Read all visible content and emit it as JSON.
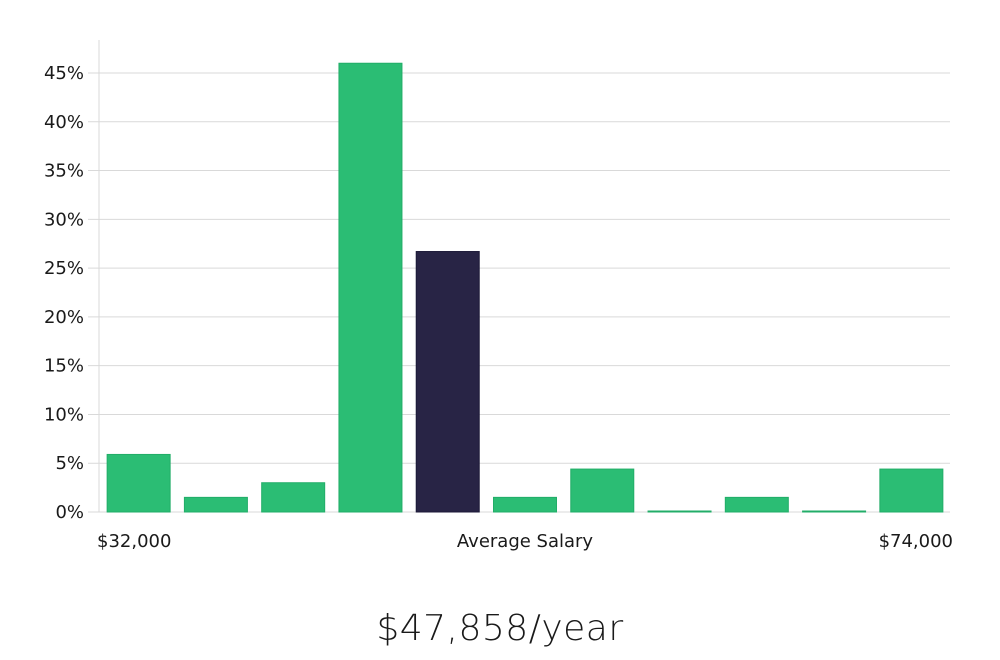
{
  "chart_data": {
    "type": "bar",
    "categories": [
      "1",
      "2",
      "3",
      "4",
      "5",
      "6",
      "7",
      "8",
      "9",
      "10",
      "11"
    ],
    "values": [
      5.9,
      1.5,
      3.0,
      46.0,
      26.7,
      1.5,
      4.4,
      0.05,
      1.5,
      0.05,
      4.4
    ],
    "highlight_index": 4,
    "colors": {
      "bar": "#2bbd74",
      "highlight": "#282445",
      "grid": "#d9d9d9",
      "text": "#1a1a1a"
    },
    "ylim": [
      0,
      48
    ],
    "y_ticks": [
      0,
      5,
      10,
      15,
      20,
      25,
      30,
      35,
      40,
      45
    ],
    "y_tick_labels": [
      "0%",
      "5%",
      "10%",
      "15%",
      "20%",
      "25%",
      "30%",
      "35%",
      "40%",
      "45%"
    ],
    "x_label_left": "$32,000",
    "x_label_center": "Average Salary",
    "x_label_right": "$74,000",
    "grid": true
  },
  "summary": {
    "average_salary": "$47,858/year"
  }
}
